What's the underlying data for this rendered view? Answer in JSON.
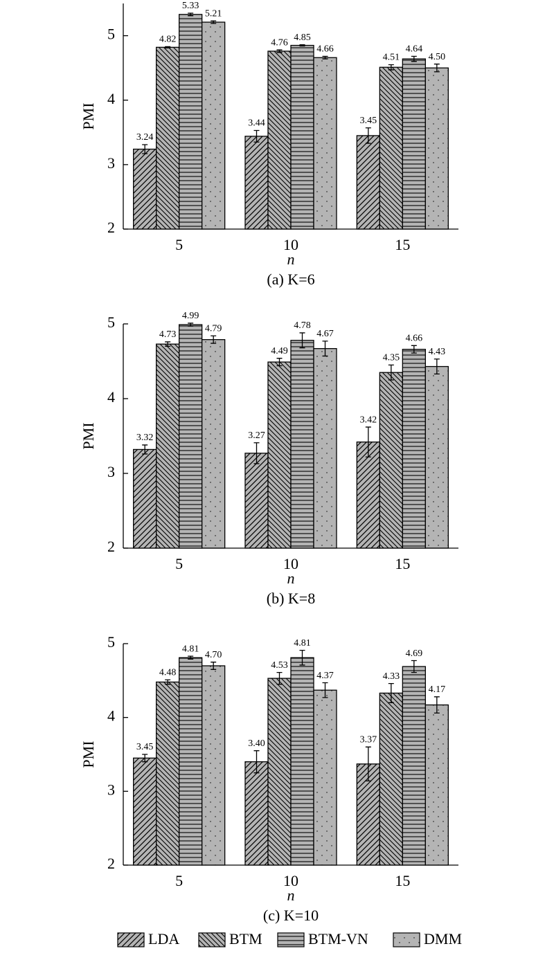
{
  "chart_data": [
    {
      "type": "bar",
      "caption": "(a) K=6",
      "xlabel": "n",
      "ylabel": "PMI",
      "categories": [
        "5",
        "10",
        "15"
      ],
      "ylim": [
        2,
        5.5
      ],
      "yticks": [
        2,
        3,
        4,
        5
      ],
      "series": [
        {
          "name": "LDA",
          "color": "#b4b4b4",
          "hatch": "/",
          "values": [
            3.24,
            3.44,
            3.45
          ],
          "value_labels": [
            "3.24",
            "3.44",
            "3.45"
          ],
          "errors": [
            0.07,
            0.09,
            0.12
          ]
        },
        {
          "name": "BTM",
          "color": "#b4b4b4",
          "hatch": "\\",
          "values": [
            4.82,
            4.76,
            4.51
          ],
          "value_labels": [
            "4.82",
            "4.76",
            "4.51"
          ],
          "errors": [
            0.01,
            0.02,
            0.04
          ]
        },
        {
          "name": "BTM-VN",
          "color": "#b4b4b4",
          "hatch": "-",
          "values": [
            5.33,
            4.85,
            4.64
          ],
          "value_labels": [
            "5.33",
            "4.85",
            "4.64"
          ],
          "errors": [
            0.02,
            0.01,
            0.04
          ]
        },
        {
          "name": "DMM",
          "color": "#b4b4b4",
          "hatch": ".",
          "values": [
            5.21,
            4.66,
            4.5
          ],
          "value_labels": [
            "5.21",
            "4.66",
            "4.50"
          ],
          "errors": [
            0.02,
            0.02,
            0.06
          ]
        }
      ]
    },
    {
      "type": "bar",
      "caption": "(b) K=8",
      "xlabel": "n",
      "ylabel": "PMI",
      "categories": [
        "5",
        "10",
        "15"
      ],
      "ylim": [
        2,
        5
      ],
      "yticks": [
        2,
        3,
        4,
        5
      ],
      "series": [
        {
          "name": "LDA",
          "color": "#b4b4b4",
          "hatch": "/",
          "values": [
            3.32,
            3.27,
            3.42
          ],
          "value_labels": [
            "3.32",
            "3.27",
            "3.42"
          ],
          "errors": [
            0.06,
            0.14,
            0.2
          ]
        },
        {
          "name": "BTM",
          "color": "#b4b4b4",
          "hatch": "\\",
          "values": [
            4.73,
            4.49,
            4.35
          ],
          "value_labels": [
            "4.73",
            "4.49",
            "4.35"
          ],
          "errors": [
            0.03,
            0.05,
            0.1
          ]
        },
        {
          "name": "BTM-VN",
          "color": "#b4b4b4",
          "hatch": "-",
          "values": [
            4.99,
            4.78,
            4.66
          ],
          "value_labels": [
            "4.99",
            "4.78",
            "4.66"
          ],
          "errors": [
            0.02,
            0.1,
            0.05
          ]
        },
        {
          "name": "DMM",
          "color": "#b4b4b4",
          "hatch": ".",
          "values": [
            4.79,
            4.67,
            4.43
          ],
          "value_labels": [
            "4.79",
            "4.67",
            "4.43"
          ],
          "errors": [
            0.05,
            0.1,
            0.1
          ]
        }
      ]
    },
    {
      "type": "bar",
      "caption": "(c) K=10",
      "xlabel": "n",
      "ylabel": "PMI",
      "categories": [
        "5",
        "10",
        "15"
      ],
      "ylim": [
        2,
        5
      ],
      "yticks": [
        2,
        3,
        4,
        5
      ],
      "series": [
        {
          "name": "LDA",
          "color": "#b4b4b4",
          "hatch": "/",
          "values": [
            3.45,
            3.4,
            3.37
          ],
          "value_labels": [
            "3.45",
            "3.40",
            "3.37"
          ],
          "errors": [
            0.05,
            0.15,
            0.23
          ]
        },
        {
          "name": "BTM",
          "color": "#b4b4b4",
          "hatch": "\\",
          "values": [
            4.48,
            4.53,
            4.33
          ],
          "value_labels": [
            "4.48",
            "4.53",
            "4.33"
          ],
          "errors": [
            0.03,
            0.08,
            0.13
          ]
        },
        {
          "name": "BTM-VN",
          "color": "#b4b4b4",
          "hatch": "-",
          "values": [
            4.81,
            4.81,
            4.69
          ],
          "value_labels": [
            "4.81",
            "4.81",
            "4.69"
          ],
          "errors": [
            0.02,
            0.1,
            0.08
          ]
        },
        {
          "name": "DMM",
          "color": "#b4b4b4",
          "hatch": ".",
          "values": [
            4.7,
            4.37,
            4.17
          ],
          "value_labels": [
            "4.70",
            "4.37",
            "4.17"
          ],
          "errors": [
            0.05,
            0.1,
            0.11
          ]
        }
      ]
    }
  ]
}
